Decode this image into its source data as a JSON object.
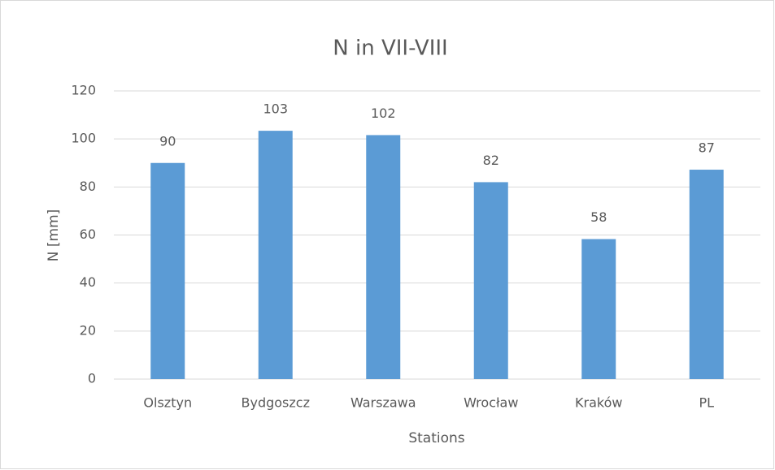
{
  "chart_data": {
    "type": "bar",
    "title": "N in VII-VIII",
    "x_label": "Stations",
    "y_label": "N [mm]",
    "categories": [
      "Olsztyn",
      "Bydgoszcz",
      "Warszawa",
      "Wrocław",
      "Kraków",
      "PL"
    ],
    "values": [
      90,
      103.4,
      101.6,
      82,
      58.3,
      87.2
    ],
    "value_labels": [
      "90",
      "103",
      "102",
      "82",
      "58",
      "87"
    ],
    "color": "#5b9bd5",
    "ylim": [
      0,
      120
    ],
    "yticks": [
      0,
      20,
      40,
      60,
      80,
      100,
      120
    ],
    "grid": true
  }
}
